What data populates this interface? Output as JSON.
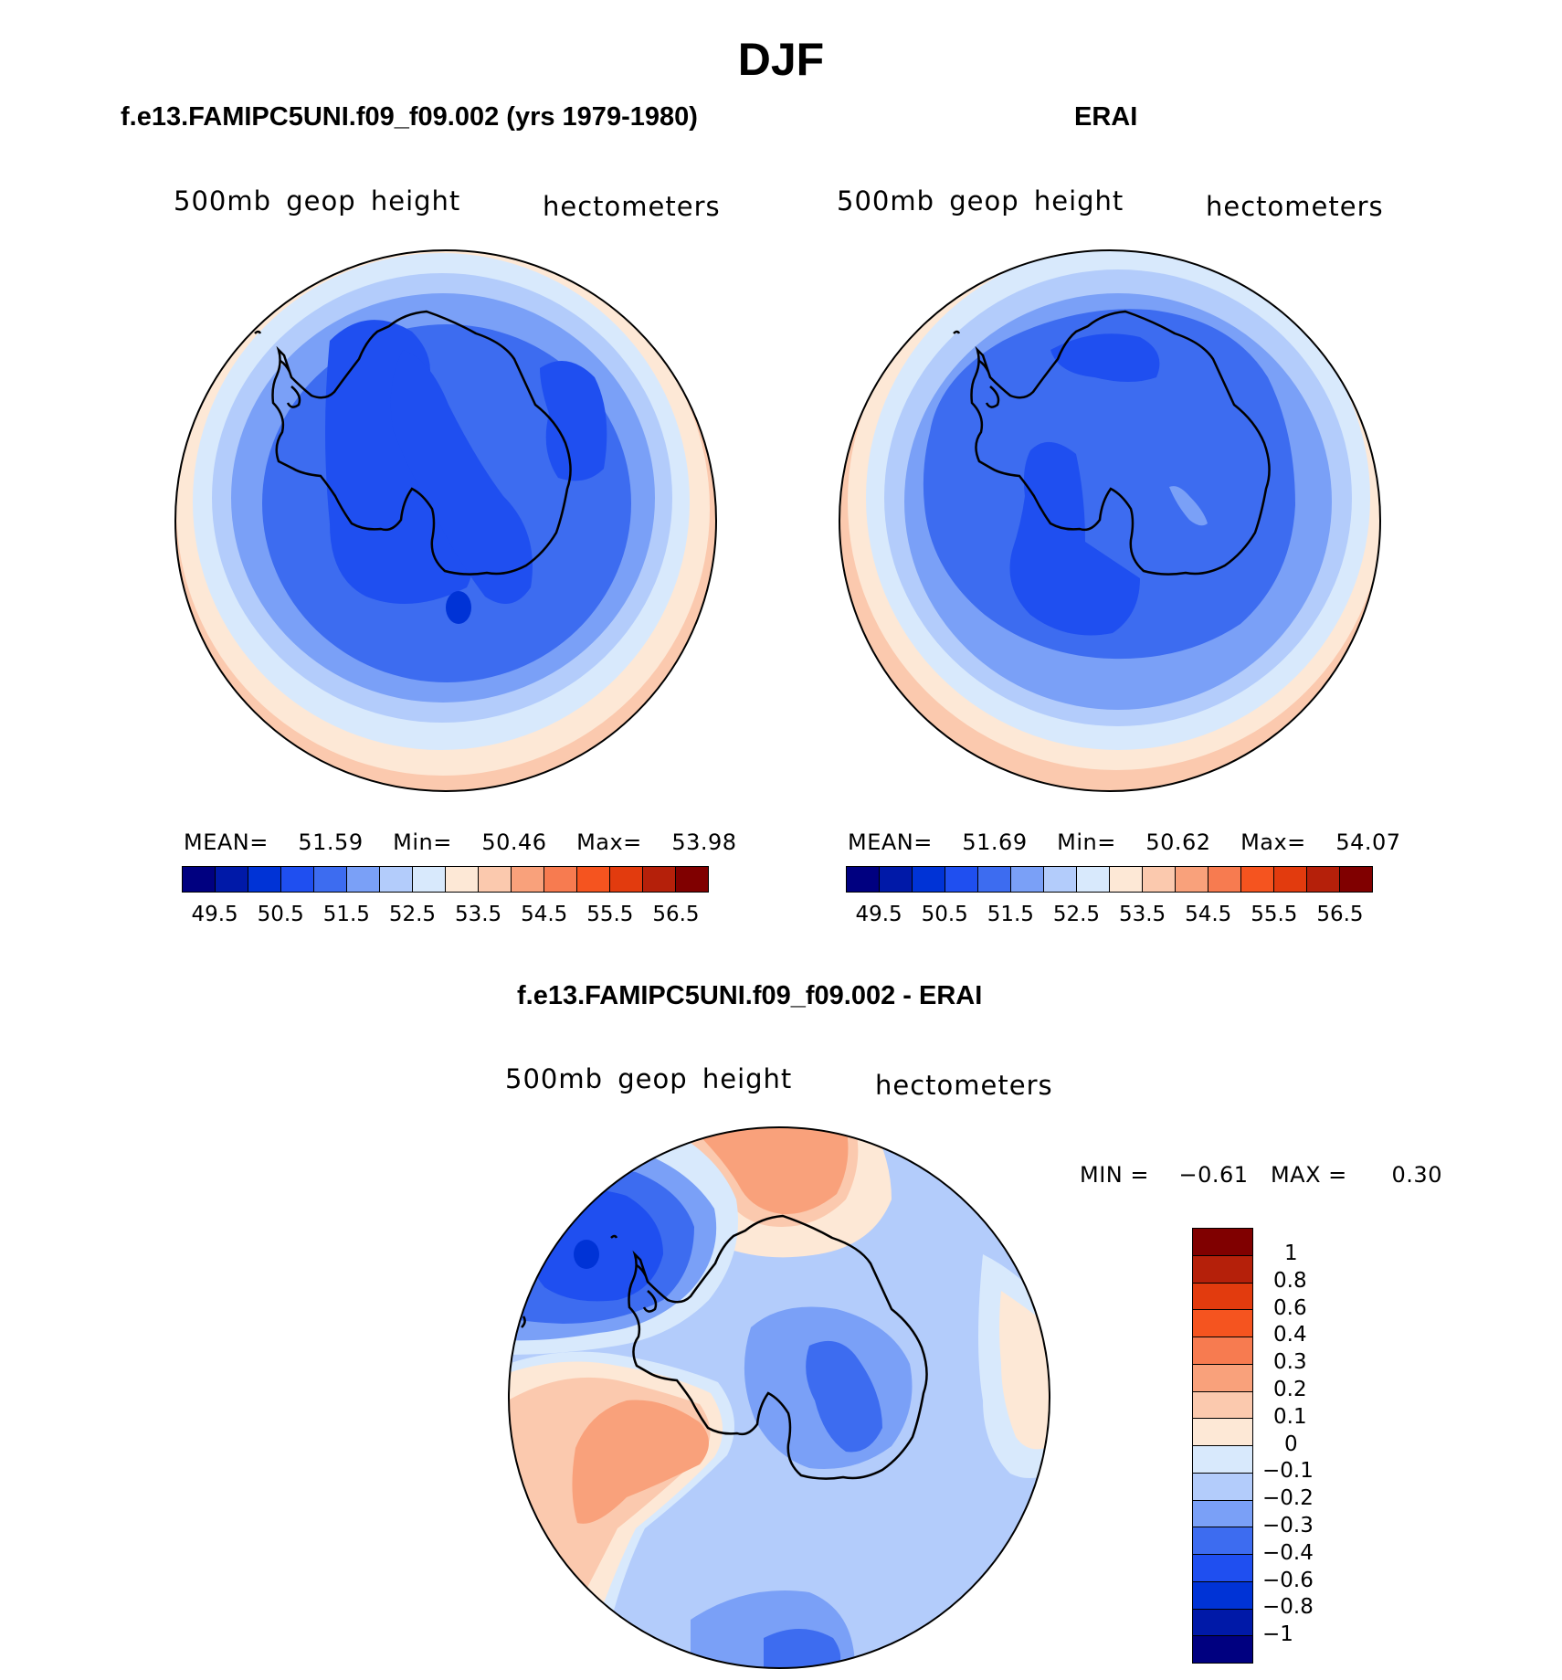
{
  "title": "DJF",
  "panels": {
    "model": {
      "subtitle": "f.e13.FAMIPC5UNI.f09_f09.002 (yrs 1979-1980)",
      "variable": "500mb geop height",
      "units": "hectometers",
      "stats": {
        "mean_label": "MEAN=",
        "mean": "51.59",
        "min_label": "Min=",
        "min": "50.46",
        "max_label": "Max=",
        "max": "53.98"
      }
    },
    "obs": {
      "subtitle": "ERAI",
      "variable": "500mb geop height",
      "units": "hectometers",
      "stats": {
        "mean_label": "MEAN=",
        "mean": "51.69",
        "min_label": "Min=",
        "min": "50.62",
        "max_label": "Max=",
        "max": "54.07"
      }
    },
    "diff": {
      "subtitle": "f.e13.FAMIPC5UNI.f09_f09.002 - ERAI",
      "variable": "500mb geop height",
      "units": "hectometers",
      "stats": {
        "min_label": "MIN =",
        "min": "−0.61",
        "max_label": "MAX =",
        "max": "0.30"
      }
    }
  },
  "colors": {
    "sequential": [
      "#000080",
      "#0019a8",
      "#0033d6",
      "#1f4ff0",
      "#3d6cf0",
      "#7aa0f7",
      "#b3ccfb",
      "#d8e9fc",
      "#fde8d6",
      "#fbc9ae",
      "#f9a17b",
      "#f77b50",
      "#f5541f",
      "#e23b0e",
      "#b5200a",
      "#800000"
    ],
    "diff": [
      "#800000",
      "#b5200a",
      "#e23b0e",
      "#f5541f",
      "#f77b50",
      "#f9a17b",
      "#fbc9ae",
      "#fde8d6",
      "#d8e9fc",
      "#b3ccfb",
      "#7aa0f7",
      "#3d6cf0",
      "#1f4ff0",
      "#0033d6",
      "#0019a8",
      "#000080"
    ]
  },
  "colorbar_ticks": [
    "49.5",
    "50.5",
    "51.5",
    "52.5",
    "53.5",
    "54.5",
    "55.5",
    "56.5"
  ],
  "diff_colorbar_ticks": [
    "1",
    "0.8",
    "0.6",
    "0.4",
    "0.3",
    "0.2",
    "0.1",
    "0",
    "−0.1",
    "−0.2",
    "−0.3",
    "−0.4",
    "−0.6",
    "−0.8",
    "−1"
  ]
}
